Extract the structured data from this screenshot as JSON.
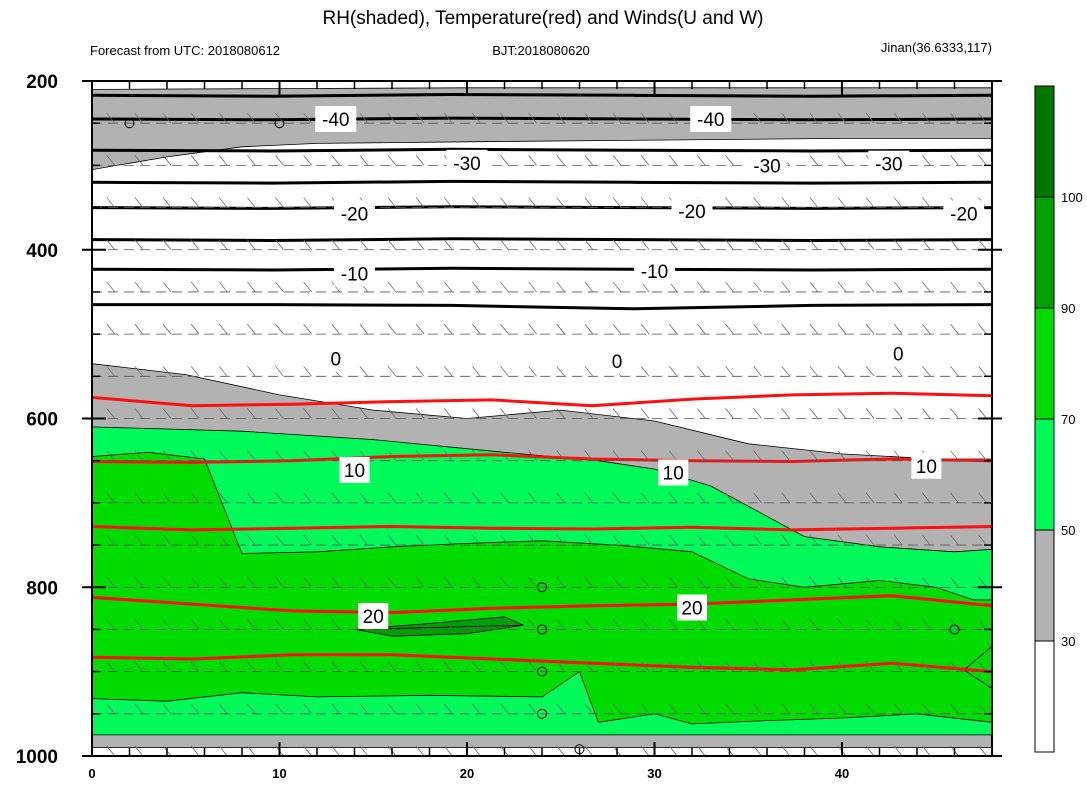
{
  "title": "RH(shaded), Temperature(red) and Winds(U and W)",
  "subtitle_left": "Forecast from UTC: 2018080612",
  "subtitle_center": "BJT:2018080620",
  "subtitle_right": "Jinan(36.6333,117)",
  "colors": {
    "rh_30_50": "#b2b2b2",
    "rh_50_70": "#00fa5a",
    "rh_70_90": "#00dc00",
    "rh_90_100": "#00a000",
    "rh_100": "#007800",
    "warm_isotherm": "#ff1010",
    "cold_isotherm": "#000000"
  },
  "chart_data": {
    "type": "heatmap",
    "title": "RH(shaded), Temperature(red) and Winds(U and W)",
    "xlabel": "",
    "ylabel": "",
    "x_range": [
      0,
      48
    ],
    "y_range": [
      1000,
      200
    ],
    "x_ticks": [
      0,
      10,
      20,
      30,
      40
    ],
    "y_ticks": [
      200,
      400,
      600,
      800,
      1000
    ],
    "colorbar": {
      "levels": [
        30,
        50,
        70,
        90,
        100
      ],
      "tick_labels": [
        "30",
        "50",
        "70",
        "90",
        "100"
      ],
      "colors": [
        "#ffffff",
        "#b2b2b2",
        "#00fa5a",
        "#00dc00",
        "#00a000",
        "#007800"
      ]
    },
    "rh_bands": [
      {
        "level": 30,
        "color": "#b2b2b2",
        "upper": [
          [
            0,
            210
          ],
          [
            10,
            209
          ],
          [
            20,
            208
          ],
          [
            30,
            208
          ],
          [
            40,
            208
          ],
          [
            48,
            208
          ]
        ],
        "lower": [
          [
            0,
            305
          ],
          [
            4,
            290
          ],
          [
            8,
            278
          ],
          [
            12,
            274
          ],
          [
            20,
            272
          ],
          [
            30,
            270
          ],
          [
            40,
            268
          ],
          [
            48,
            268
          ]
        ]
      },
      {
        "level": 30,
        "color": "#b2b2b2",
        "upper": [
          [
            0,
            535
          ],
          [
            5,
            548
          ],
          [
            10,
            572
          ],
          [
            15,
            590
          ],
          [
            20,
            600
          ],
          [
            25,
            590
          ],
          [
            30,
            603
          ],
          [
            35,
            630
          ],
          [
            40,
            642
          ],
          [
            45,
            648
          ],
          [
            48,
            648
          ]
        ],
        "lower": [
          [
            0,
            990
          ],
          [
            20,
            990
          ],
          [
            40,
            990
          ],
          [
            48,
            990
          ]
        ]
      },
      {
        "level": 50,
        "color": "#00fa5a",
        "upper": [
          [
            0,
            610
          ],
          [
            8,
            615
          ],
          [
            15,
            625
          ],
          [
            22,
            640
          ],
          [
            27,
            650
          ],
          [
            30,
            660
          ],
          [
            33,
            680
          ],
          [
            38,
            740
          ],
          [
            42,
            752
          ],
          [
            46,
            758
          ],
          [
            48,
            755
          ]
        ],
        "lower": [
          [
            0,
            975
          ],
          [
            20,
            975
          ],
          [
            40,
            975
          ],
          [
            48,
            975
          ]
        ]
      },
      {
        "level": 70,
        "color": "#00dc00",
        "upper": [
          [
            0,
            645
          ],
          [
            3,
            640
          ],
          [
            6,
            648
          ],
          [
            8,
            760
          ],
          [
            12,
            758
          ],
          [
            16,
            752
          ],
          [
            20,
            748
          ],
          [
            24,
            745
          ],
          [
            28,
            750
          ],
          [
            32,
            758
          ],
          [
            35,
            790
          ],
          [
            38,
            800
          ],
          [
            42,
            792
          ],
          [
            45,
            800
          ],
          [
            47,
            815
          ],
          [
            48,
            815
          ]
        ],
        "lower": [
          [
            0,
            932
          ],
          [
            4,
            935
          ],
          [
            8,
            925
          ],
          [
            12,
            930
          ],
          [
            18,
            928
          ],
          [
            24,
            930
          ],
          [
            26,
            900
          ],
          [
            27,
            960
          ],
          [
            30,
            950
          ],
          [
            32,
            962
          ],
          [
            36,
            958
          ],
          [
            40,
            955
          ],
          [
            44,
            950
          ],
          [
            48,
            960
          ]
        ]
      },
      {
        "level": 90,
        "color": "#00a000",
        "upper": [
          [
            14,
            850
          ],
          [
            18,
            843
          ],
          [
            22,
            835
          ],
          [
            23,
            845
          ]
        ],
        "lower": [
          [
            23,
            845
          ],
          [
            20,
            855
          ],
          [
            16,
            858
          ],
          [
            14,
            850
          ]
        ]
      },
      {
        "level": 90,
        "color": "#00a000",
        "upper": [
          [
            46.5,
            898
          ],
          [
            48,
            870
          ]
        ],
        "lower": [
          [
            48,
            920
          ],
          [
            46.5,
            898
          ]
        ]
      }
    ],
    "isotherms_cold": [
      {
        "value": -40,
        "y": [
          217,
          218,
          216,
          217,
          218,
          217
        ]
      },
      {
        "value": -40,
        "y": [
          245,
          246,
          244,
          245,
          246,
          245
        ]
      },
      {
        "value": -30,
        "y": [
          282,
          283,
          281,
          282,
          283,
          282
        ]
      },
      {
        "value": -30,
        "y": [
          320,
          321,
          319,
          320,
          321,
          320
        ]
      },
      {
        "value": -20,
        "y": [
          350,
          351,
          349,
          350,
          351,
          350
        ]
      },
      {
        "value": -20,
        "y": [
          388,
          389,
          387,
          388,
          389,
          388
        ]
      },
      {
        "value": -10,
        "y": [
          423,
          424,
          422,
          423,
          424,
          423
        ]
      },
      {
        "value": -10,
        "y": [
          465,
          465,
          466,
          470,
          466,
          465
        ]
      }
    ],
    "isotherms_warm": [
      {
        "value": 0,
        "y": [
          575,
          585,
          583,
          580,
          578,
          585,
          577,
          572,
          570,
          573
        ]
      },
      {
        "value": 10,
        "y": [
          651,
          652,
          650,
          645,
          643,
          648,
          650,
          651,
          648,
          650
        ]
      },
      {
        "value": 10,
        "y": [
          728,
          732,
          730,
          728,
          730,
          731,
          729,
          732,
          730,
          728
        ]
      },
      {
        "value": 20,
        "y": [
          812,
          820,
          828,
          830,
          825,
          822,
          820,
          815,
          810,
          822
        ]
      },
      {
        "value": 20,
        "y": [
          883,
          885,
          880,
          880,
          885,
          890,
          895,
          898,
          890,
          900
        ]
      }
    ],
    "contour_labels": [
      {
        "text": "-40",
        "x": 13,
        "y": 245
      },
      {
        "text": "-40",
        "x": 33,
        "y": 245
      },
      {
        "text": "-30",
        "x": 20,
        "y": 297
      },
      {
        "text": "-30",
        "x": 36,
        "y": 300
      },
      {
        "text": "-30",
        "x": 42.5,
        "y": 298
      },
      {
        "text": "-20",
        "x": 14,
        "y": 357
      },
      {
        "text": "-20",
        "x": 32,
        "y": 354
      },
      {
        "text": "-20",
        "x": 46.5,
        "y": 357
      },
      {
        "text": "-10",
        "x": 14,
        "y": 428
      },
      {
        "text": "-10",
        "x": 30,
        "y": 425
      },
      {
        "text": "0",
        "x": 13,
        "y": 529
      },
      {
        "text": "0",
        "x": 28,
        "y": 532
      },
      {
        "text": "0",
        "x": 43,
        "y": 523
      },
      {
        "text": "10",
        "x": 14,
        "y": 661
      },
      {
        "text": "10",
        "x": 31,
        "y": 664
      },
      {
        "text": "10",
        "x": 44.5,
        "y": 656
      },
      {
        "text": "20",
        "x": 15,
        "y": 834
      },
      {
        "text": "20",
        "x": 32,
        "y": 824
      }
    ],
    "wind_levels": [
      200,
      250,
      300,
      350,
      400,
      450,
      500,
      550,
      600,
      650,
      700,
      750,
      800,
      850,
      900,
      950,
      1000
    ],
    "calm_markers": [
      [
        2,
        250
      ],
      [
        10,
        250
      ],
      [
        24,
        800
      ],
      [
        24,
        850
      ],
      [
        24,
        900
      ],
      [
        24,
        950
      ],
      [
        26,
        992
      ],
      [
        46,
        850
      ]
    ]
  }
}
